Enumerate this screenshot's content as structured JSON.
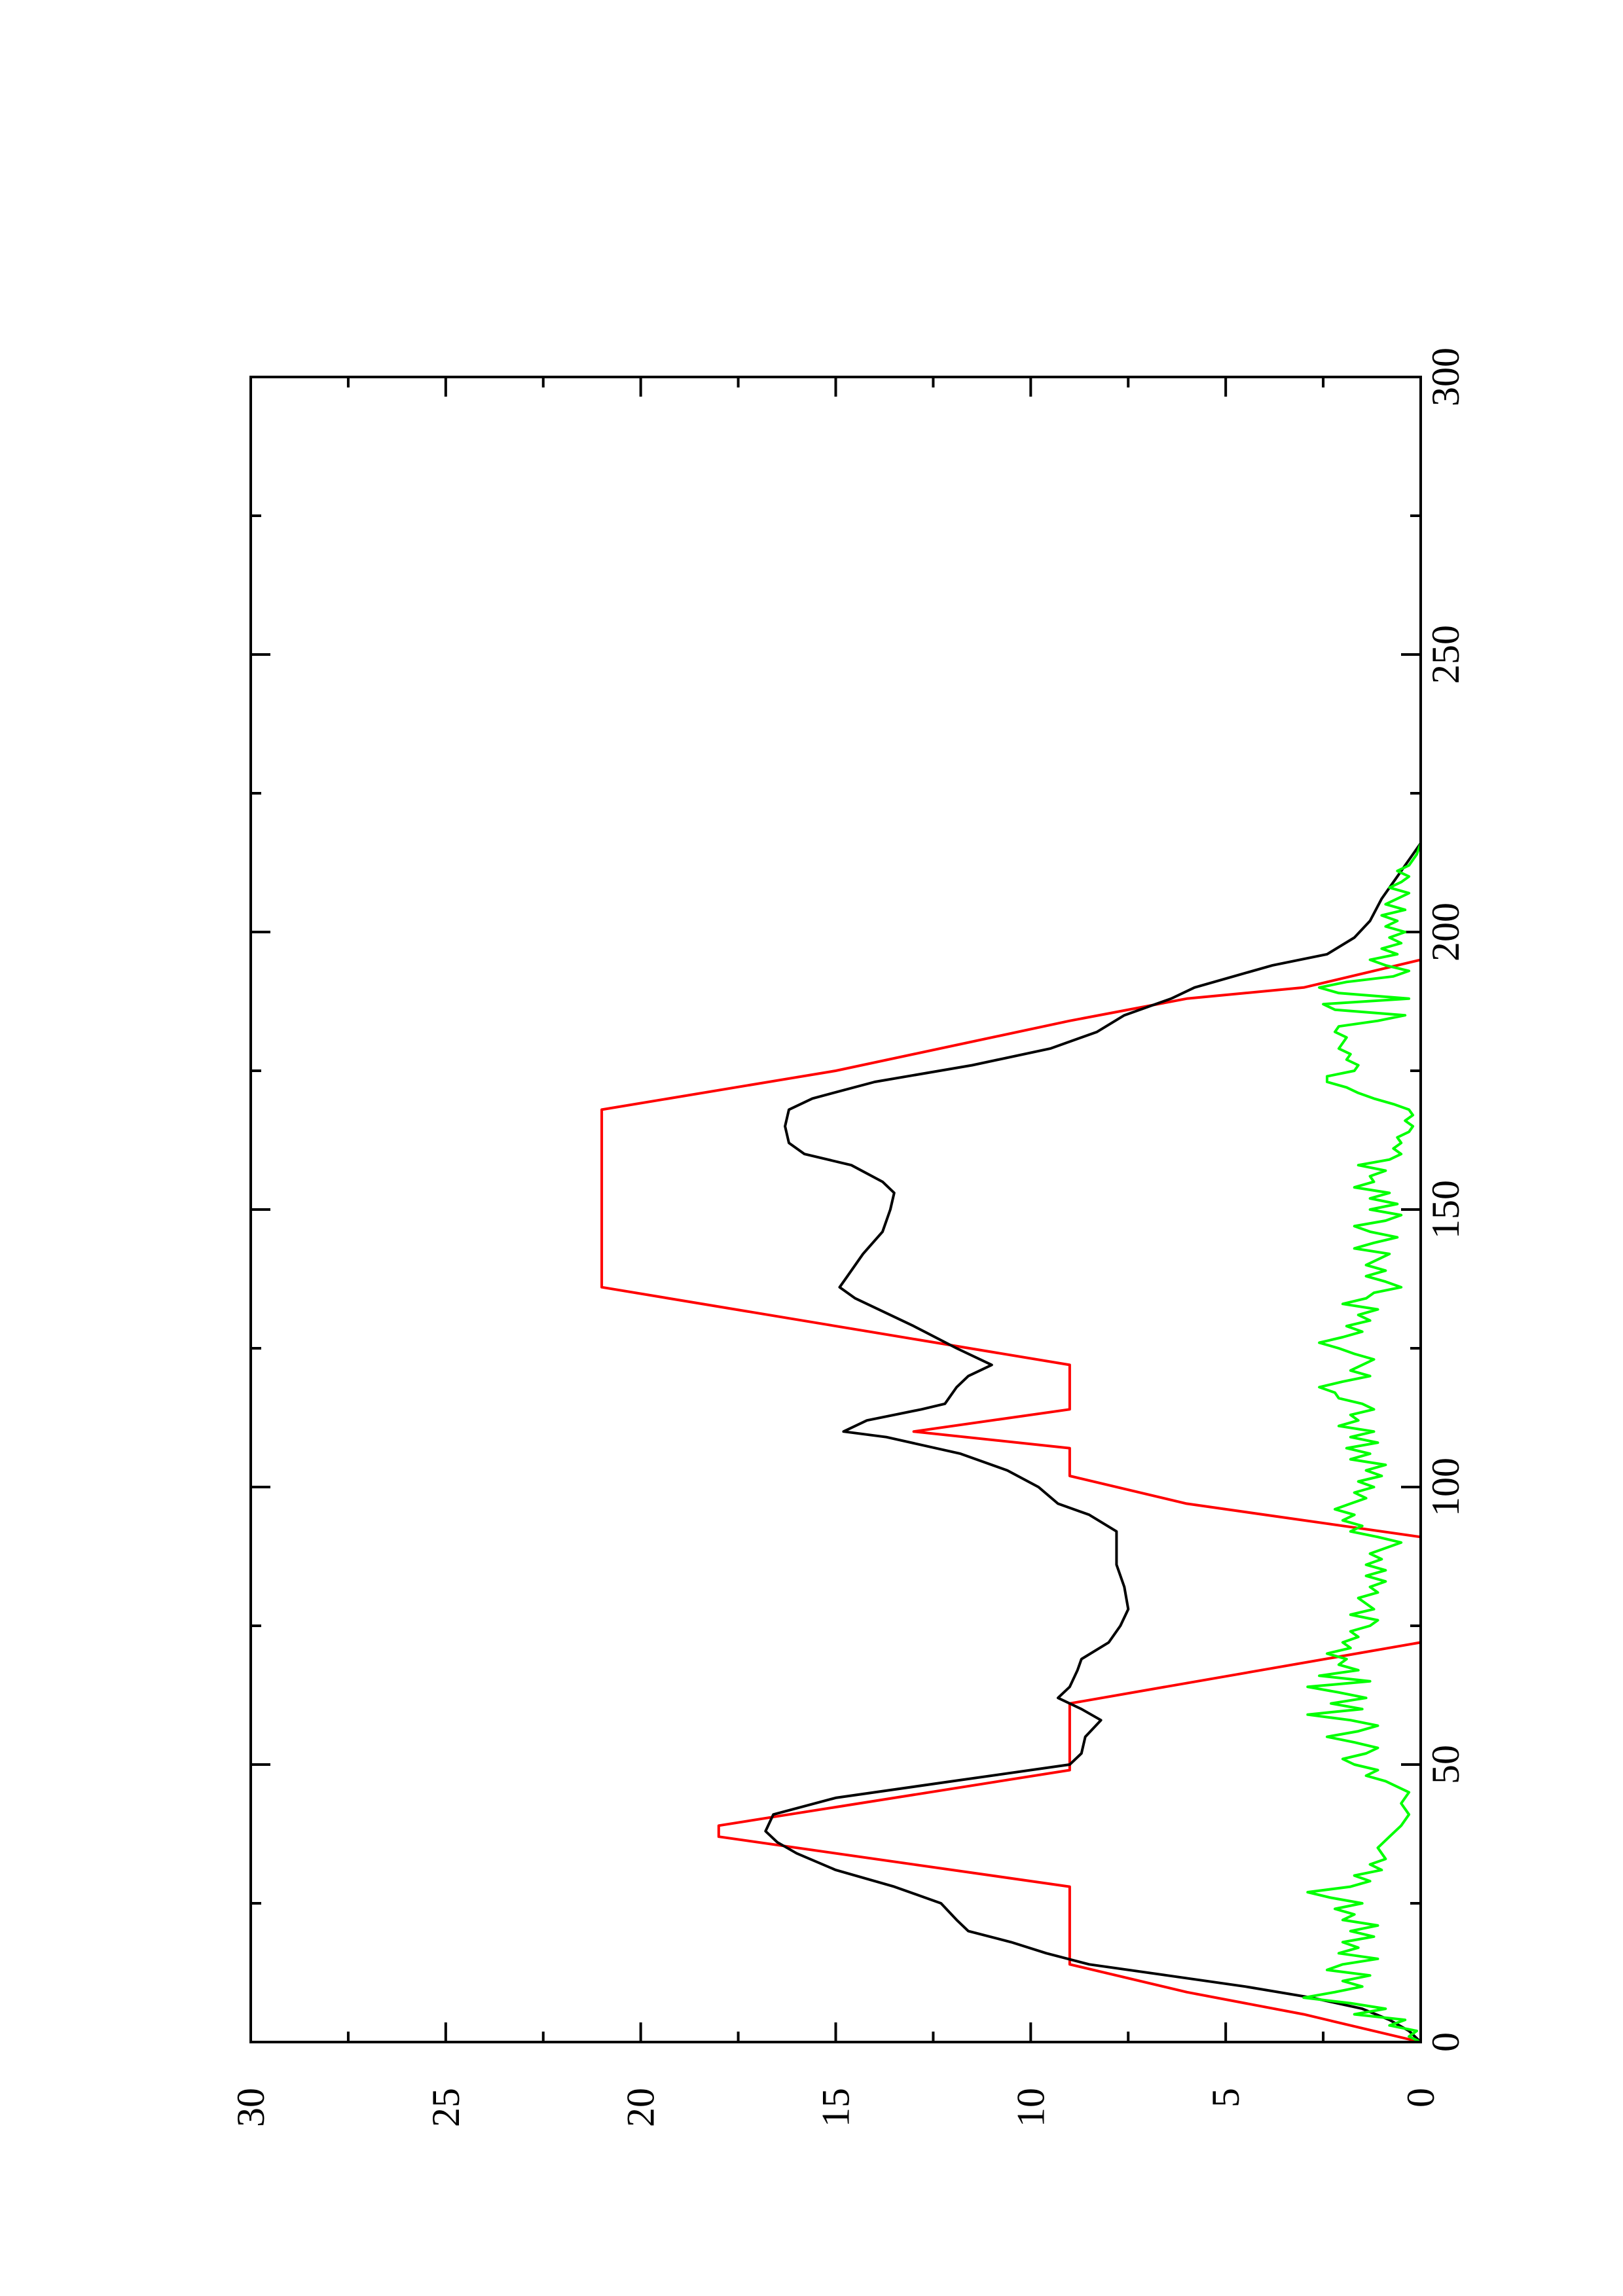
{
  "chart_data": {
    "type": "line",
    "title": "",
    "xlabel": "",
    "ylabel": "",
    "xlim": [
      0,
      300
    ],
    "ylim": [
      0,
      30
    ],
    "orientation": "rotated-90-ccw",
    "grid": false,
    "legend": "none",
    "x_ticks_major": [
      0,
      50,
      100,
      150,
      200,
      250,
      300
    ],
    "x_ticks_minor": [
      25,
      75,
      125,
      175,
      225,
      275
    ],
    "y_ticks_major": [
      0,
      5,
      10,
      15,
      20,
      25,
      30
    ],
    "y_ticks_minor": [
      2.5,
      7.5,
      12.5,
      17.5,
      22.5,
      27.5
    ],
    "x_tick_labels": [
      "0",
      "50",
      "100",
      "150",
      "200",
      "250",
      "300"
    ],
    "y_tick_labels": [
      "0",
      "5",
      "10",
      "15",
      "20",
      "25",
      "30"
    ],
    "series": [
      {
        "color": "#ff0000",
        "points": [
          [
            0,
            0
          ],
          [
            5,
            3
          ],
          [
            9,
            6
          ],
          [
            14,
            9
          ],
          [
            28,
            9
          ],
          [
            37,
            18
          ],
          [
            39,
            18
          ],
          [
            49,
            9
          ],
          [
            61,
            9
          ],
          [
            72,
            0
          ],
          [
            91,
            0
          ],
          [
            97,
            6
          ],
          [
            102,
            9
          ],
          [
            107,
            9
          ],
          [
            110,
            13
          ],
          [
            114,
            9
          ],
          [
            122,
            9
          ],
          [
            136,
            21
          ],
          [
            168,
            21
          ],
          [
            175,
            15
          ],
          [
            184,
            9
          ],
          [
            188,
            6
          ],
          [
            190,
            3
          ],
          [
            195,
            0
          ],
          [
            216,
            0
          ]
        ]
      },
      {
        "color": "#000000",
        "points": [
          [
            0,
            0
          ],
          [
            2,
            0.3
          ],
          [
            4,
            0.8
          ],
          [
            6,
            1.5
          ],
          [
            8,
            2.8
          ],
          [
            10,
            4.5
          ],
          [
            12,
            6.5
          ],
          [
            14,
            8.5
          ],
          [
            16,
            9.6
          ],
          [
            18,
            10.5
          ],
          [
            20,
            11.6
          ],
          [
            22,
            11.9
          ],
          [
            25,
            12.3
          ],
          [
            28,
            13.5
          ],
          [
            31,
            15
          ],
          [
            34,
            16
          ],
          [
            36,
            16.5
          ],
          [
            38,
            16.8
          ],
          [
            41,
            16.6
          ],
          [
            44,
            15
          ],
          [
            47,
            12
          ],
          [
            50,
            9
          ],
          [
            52,
            8.7
          ],
          [
            55,
            8.6
          ],
          [
            58,
            8.2
          ],
          [
            60,
            8.7
          ],
          [
            62,
            9.3
          ],
          [
            64,
            9
          ],
          [
            67,
            8.8
          ],
          [
            69,
            8.7
          ],
          [
            72,
            8
          ],
          [
            75,
            7.7
          ],
          [
            78,
            7.5
          ],
          [
            82,
            7.6
          ],
          [
            86,
            7.8
          ],
          [
            90,
            7.8
          ],
          [
            92,
            7.8
          ],
          [
            95,
            8.5
          ],
          [
            97,
            9.3
          ],
          [
            100,
            9.8
          ],
          [
            103,
            10.6
          ],
          [
            106,
            11.8
          ],
          [
            109,
            13.7
          ],
          [
            110,
            14.8
          ],
          [
            112,
            14.2
          ],
          [
            114,
            12.8
          ],
          [
            115,
            12.2
          ],
          [
            118,
            11.9
          ],
          [
            120,
            11.6
          ],
          [
            122,
            11
          ],
          [
            125,
            11.9
          ],
          [
            129,
            13
          ],
          [
            134,
            14.5
          ],
          [
            136,
            14.9
          ],
          [
            138,
            14.7
          ],
          [
            142,
            14.3
          ],
          [
            146,
            13.8
          ],
          [
            150,
            13.6
          ],
          [
            153,
            13.5
          ],
          [
            155,
            13.8
          ],
          [
            158,
            14.6
          ],
          [
            160,
            15.8
          ],
          [
            162,
            16.2
          ],
          [
            165,
            16.3
          ],
          [
            168,
            16.2
          ],
          [
            170,
            15.6
          ],
          [
            173,
            14
          ],
          [
            176,
            11.5
          ],
          [
            179,
            9.5
          ],
          [
            182,
            8.3
          ],
          [
            185,
            7.6
          ],
          [
            187,
            6.8
          ],
          [
            188,
            6.4
          ],
          [
            190,
            5.8
          ],
          [
            192,
            4.8
          ],
          [
            194,
            3.8
          ],
          [
            196,
            2.4
          ],
          [
            199,
            1.7
          ],
          [
            202,
            1.3
          ],
          [
            206,
            1
          ],
          [
            210,
            0.6
          ],
          [
            216,
            0
          ]
        ]
      },
      {
        "color": "#00ff00",
        "points": [
          [
            0,
            0
          ],
          [
            1,
            0.3
          ],
          [
            2,
            0.1
          ],
          [
            3,
            0.8
          ],
          [
            4,
            0.4
          ],
          [
            5,
            1.7
          ],
          [
            6,
            0.9
          ],
          [
            7,
            1.8
          ],
          [
            8,
            3
          ],
          [
            9,
            2.2
          ],
          [
            10,
            1.5
          ],
          [
            11,
            2
          ],
          [
            12,
            1.3
          ],
          [
            13,
            2.4
          ],
          [
            14,
            2
          ],
          [
            15,
            1.1
          ],
          [
            16,
            2.1
          ],
          [
            17,
            1.6
          ],
          [
            18,
            2
          ],
          [
            19,
            1.2
          ],
          [
            20,
            1.8
          ],
          [
            21,
            1.1
          ],
          [
            22,
            2
          ],
          [
            23,
            1.7
          ],
          [
            24,
            2.2
          ],
          [
            25,
            1.5
          ],
          [
            26,
            2.3
          ],
          [
            27,
            2.9
          ],
          [
            28,
            1.8
          ],
          [
            29,
            1.3
          ],
          [
            30,
            1.7
          ],
          [
            31,
            1
          ],
          [
            32,
            1.3
          ],
          [
            33,
            0.9
          ],
          [
            35,
            1.1
          ],
          [
            37,
            0.8
          ],
          [
            39,
            0.5
          ],
          [
            41,
            0.3
          ],
          [
            43,
            0.5
          ],
          [
            45,
            0.3
          ],
          [
            47,
            0.9
          ],
          [
            48,
            1.4
          ],
          [
            49,
            1.1
          ],
          [
            50,
            1.7
          ],
          [
            51,
            2
          ],
          [
            52,
            1.4
          ],
          [
            53,
            1.1
          ],
          [
            54,
            1.7
          ],
          [
            55,
            2.4
          ],
          [
            56,
            1.6
          ],
          [
            57,
            1.1
          ],
          [
            58,
            1.8
          ],
          [
            59,
            2.9
          ],
          [
            60,
            1.5
          ],
          [
            61,
            2.3
          ],
          [
            62,
            1.4
          ],
          [
            63,
            2.1
          ],
          [
            64,
            2.9
          ],
          [
            65,
            1.3
          ],
          [
            66,
            2.6
          ],
          [
            67,
            1.6
          ],
          [
            68,
            2.1
          ],
          [
            69,
            1.9
          ],
          [
            70,
            2.4
          ],
          [
            71,
            1.8
          ],
          [
            72,
            2
          ],
          [
            73,
            1.6
          ],
          [
            74,
            1.8
          ],
          [
            75,
            1.3
          ],
          [
            76,
            1.1
          ],
          [
            77,
            1.8
          ],
          [
            78,
            1.2
          ],
          [
            79,
            1.4
          ],
          [
            80,
            1.6
          ],
          [
            81,
            1.1
          ],
          [
            82,
            1.3
          ],
          [
            83,
            0.9
          ],
          [
            84,
            1.4
          ],
          [
            85,
            0.9
          ],
          [
            86,
            1.4
          ],
          [
            87,
            1
          ],
          [
            88,
            1.3
          ],
          [
            89,
            0.9
          ],
          [
            90,
            0.5
          ],
          [
            91,
            1.1
          ],
          [
            92,
            1.8
          ],
          [
            93,
            1.5
          ],
          [
            94,
            2
          ],
          [
            95,
            1.7
          ],
          [
            96,
            2.2
          ],
          [
            97,
            1.8
          ],
          [
            98,
            1.4
          ],
          [
            99,
            1.7
          ],
          [
            100,
            1.2
          ],
          [
            101,
            1.6
          ],
          [
            102,
            1
          ],
          [
            103,
            1.4
          ],
          [
            104,
            0.9
          ],
          [
            105,
            1.8
          ],
          [
            106,
            1.3
          ],
          [
            107,
            1.9
          ],
          [
            108,
            1.1
          ],
          [
            109,
            1.8
          ],
          [
            110,
            1.2
          ],
          [
            111,
            2.1
          ],
          [
            112,
            1.6
          ],
          [
            113,
            1.8
          ],
          [
            114,
            1.2
          ],
          [
            115,
            1.5
          ],
          [
            116,
            2.1
          ],
          [
            117,
            2.2
          ],
          [
            118,
            2.6
          ],
          [
            119,
            2
          ],
          [
            120,
            1.3
          ],
          [
            121,
            1.8
          ],
          [
            122,
            1.5
          ],
          [
            123,
            1.2
          ],
          [
            124,
            1.7
          ],
          [
            125,
            2.1
          ],
          [
            126,
            2.6
          ],
          [
            127,
            2
          ],
          [
            128,
            1.5
          ],
          [
            129,
            1.9
          ],
          [
            130,
            1.3
          ],
          [
            131,
            1.6
          ],
          [
            132,
            1.1
          ],
          [
            133,
            2
          ],
          [
            134,
            1.4
          ],
          [
            135,
            1.2
          ],
          [
            136,
            0.5
          ],
          [
            137,
            0.9
          ],
          [
            138,
            1.4
          ],
          [
            139,
            0.9
          ],
          [
            140,
            1.4
          ],
          [
            141,
            1.1
          ],
          [
            142,
            0.8
          ],
          [
            143,
            1.7
          ],
          [
            144,
            1.2
          ],
          [
            145,
            0.6
          ],
          [
            146,
            1.3
          ],
          [
            147,
            1.7
          ],
          [
            148,
            0.9
          ],
          [
            149,
            0.5
          ],
          [
            150,
            1.3
          ],
          [
            151,
            0.6
          ],
          [
            152,
            1.3
          ],
          [
            153,
            0.8
          ],
          [
            154,
            1.7
          ],
          [
            155,
            1.2
          ],
          [
            156,
            1.3
          ],
          [
            157,
            0.9
          ],
          [
            158,
            1.6
          ],
          [
            159,
            0.8
          ],
          [
            160,
            0.5
          ],
          [
            161,
            0.7
          ],
          [
            162,
            0.5
          ],
          [
            163,
            0.6
          ],
          [
            164,
            0.3
          ],
          [
            165,
            0.2
          ],
          [
            166,
            0.4
          ],
          [
            167,
            0.2
          ],
          [
            168,
            0.3
          ],
          [
            169,
            0.7
          ],
          [
            170,
            1.2
          ],
          [
            171,
            1.6
          ],
          [
            172,
            1.9
          ],
          [
            173,
            2.4
          ],
          [
            174,
            2.4
          ],
          [
            175,
            1.7
          ],
          [
            176,
            1.6
          ],
          [
            177,
            1.9
          ],
          [
            178,
            1.8
          ],
          [
            179,
            2.1
          ],
          [
            180,
            2
          ],
          [
            181,
            1.9
          ],
          [
            182,
            2.2
          ],
          [
            183,
            2.1
          ],
          [
            184,
            1.1
          ],
          [
            185,
            0.4
          ],
          [
            186,
            2.2
          ],
          [
            187,
            2.5
          ],
          [
            188,
            0.3
          ],
          [
            189,
            2.1
          ],
          [
            190,
            2.6
          ],
          [
            191,
            1.9
          ],
          [
            192,
            0.7
          ],
          [
            193,
            0.3
          ],
          [
            194,
            0.9
          ],
          [
            195,
            1.3
          ],
          [
            196,
            0.6
          ],
          [
            197,
            1
          ],
          [
            198,
            0.5
          ],
          [
            199,
            0.8
          ],
          [
            200,
            0.4
          ],
          [
            201,
            0.9
          ],
          [
            202,
            0.6
          ],
          [
            203,
            1
          ],
          [
            204,
            0.4
          ],
          [
            205,
            0.9
          ],
          [
            206,
            0.6
          ],
          [
            207,
            0.3
          ],
          [
            208,
            0.8
          ],
          [
            209,
            0.5
          ],
          [
            210,
            0.3
          ],
          [
            211,
            0.6
          ],
          [
            212,
            0.3
          ],
          [
            214,
            0.1
          ],
          [
            216,
            0
          ]
        ]
      }
    ]
  }
}
